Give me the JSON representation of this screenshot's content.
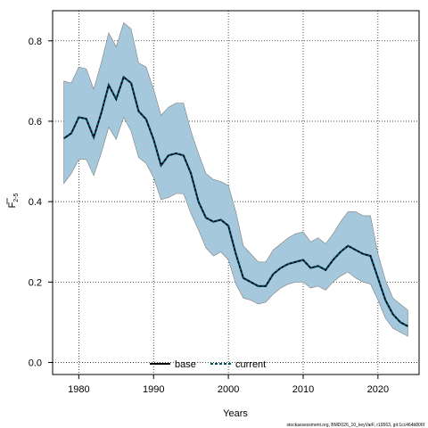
{
  "chart_data": {
    "type": "line",
    "xlabel": "Years",
    "ylabel": "F",
    "ylabel_subscript": "2-5",
    "xlim": [
      1976.5,
      2025.5
    ],
    "ylim": [
      -0.03,
      0.875
    ],
    "xticks": [
      1980,
      1990,
      2000,
      2010,
      2020
    ],
    "yticks": [
      0.0,
      0.2,
      0.4,
      0.6,
      0.8
    ],
    "ytick_labels": [
      "0.0",
      "0.2",
      "0.4",
      "0.6",
      "0.8"
    ],
    "grid": true,
    "legend_position": "bottom-center",
    "x": [
      1978,
      1979,
      1980,
      1981,
      1982,
      1983,
      1984,
      1985,
      1986,
      1987,
      1988,
      1989,
      1990,
      1991,
      1992,
      1993,
      1994,
      1995,
      1996,
      1997,
      1998,
      1999,
      2000,
      2001,
      2002,
      2003,
      2004,
      2005,
      2006,
      2007,
      2008,
      2009,
      2010,
      2011,
      2012,
      2013,
      2014,
      2015,
      2016,
      2017,
      2018,
      2019,
      2020,
      2021,
      2022,
      2023,
      2024
    ],
    "series": [
      {
        "name": "base",
        "values": [
          0.557,
          0.57,
          0.61,
          0.606,
          0.56,
          0.62,
          0.69,
          0.655,
          0.71,
          0.695,
          0.625,
          0.605,
          0.555,
          0.49,
          0.515,
          0.52,
          0.515,
          0.47,
          0.4,
          0.36,
          0.35,
          0.355,
          0.34,
          0.27,
          0.21,
          0.2,
          0.19,
          0.19,
          0.22,
          0.235,
          0.245,
          0.25,
          0.255,
          0.235,
          0.24,
          0.23,
          0.255,
          0.275,
          0.29,
          0.28,
          0.27,
          0.265,
          0.21,
          0.155,
          0.12,
          0.1,
          0.09
        ]
      },
      {
        "name": "current",
        "values": [
          0.557,
          0.57,
          0.61,
          0.606,
          0.56,
          0.62,
          0.69,
          0.655,
          0.71,
          0.695,
          0.625,
          0.605,
          0.555,
          0.49,
          0.515,
          0.52,
          0.515,
          0.47,
          0.4,
          0.36,
          0.35,
          0.355,
          0.34,
          0.27,
          0.21,
          0.2,
          0.19,
          0.19,
          0.22,
          0.235,
          0.245,
          0.25,
          0.255,
          0.235,
          0.24,
          0.23,
          0.255,
          0.275,
          0.29,
          0.28,
          0.27,
          0.265,
          0.21,
          0.155,
          0.12,
          0.1,
          0.09
        ]
      }
    ],
    "band_upper": [
      0.7,
      0.695,
      0.735,
      0.73,
      0.68,
      0.745,
      0.82,
      0.785,
      0.845,
      0.83,
      0.745,
      0.735,
      0.68,
      0.615,
      0.635,
      0.645,
      0.645,
      0.575,
      0.52,
      0.47,
      0.455,
      0.45,
      0.44,
      0.375,
      0.29,
      0.27,
      0.25,
      0.25,
      0.28,
      0.295,
      0.31,
      0.32,
      0.325,
      0.3,
      0.31,
      0.295,
      0.32,
      0.35,
      0.375,
      0.375,
      0.365,
      0.365,
      0.27,
      0.205,
      0.16,
      0.145,
      0.13
    ],
    "band_lower": [
      0.445,
      0.47,
      0.505,
      0.505,
      0.465,
      0.52,
      0.585,
      0.555,
      0.61,
      0.575,
      0.51,
      0.495,
      0.46,
      0.405,
      0.41,
      0.42,
      0.42,
      0.37,
      0.33,
      0.285,
      0.265,
      0.275,
      0.255,
      0.195,
      0.16,
      0.155,
      0.145,
      0.15,
      0.17,
      0.185,
      0.195,
      0.2,
      0.2,
      0.185,
      0.19,
      0.18,
      0.2,
      0.215,
      0.225,
      0.21,
      0.2,
      0.195,
      0.155,
      0.11,
      0.085,
      0.075,
      0.065
    ],
    "colors": {
      "band_fill": "#a6c8dc",
      "band_stroke": "#7f7f7f",
      "base_line": "#000000",
      "current_line": "#004c66",
      "grid": "#000000"
    }
  },
  "footer": {
    "text": "stockassessment.org, BMD026_10_keyVarF, r19563, git:1cc464b806f"
  }
}
